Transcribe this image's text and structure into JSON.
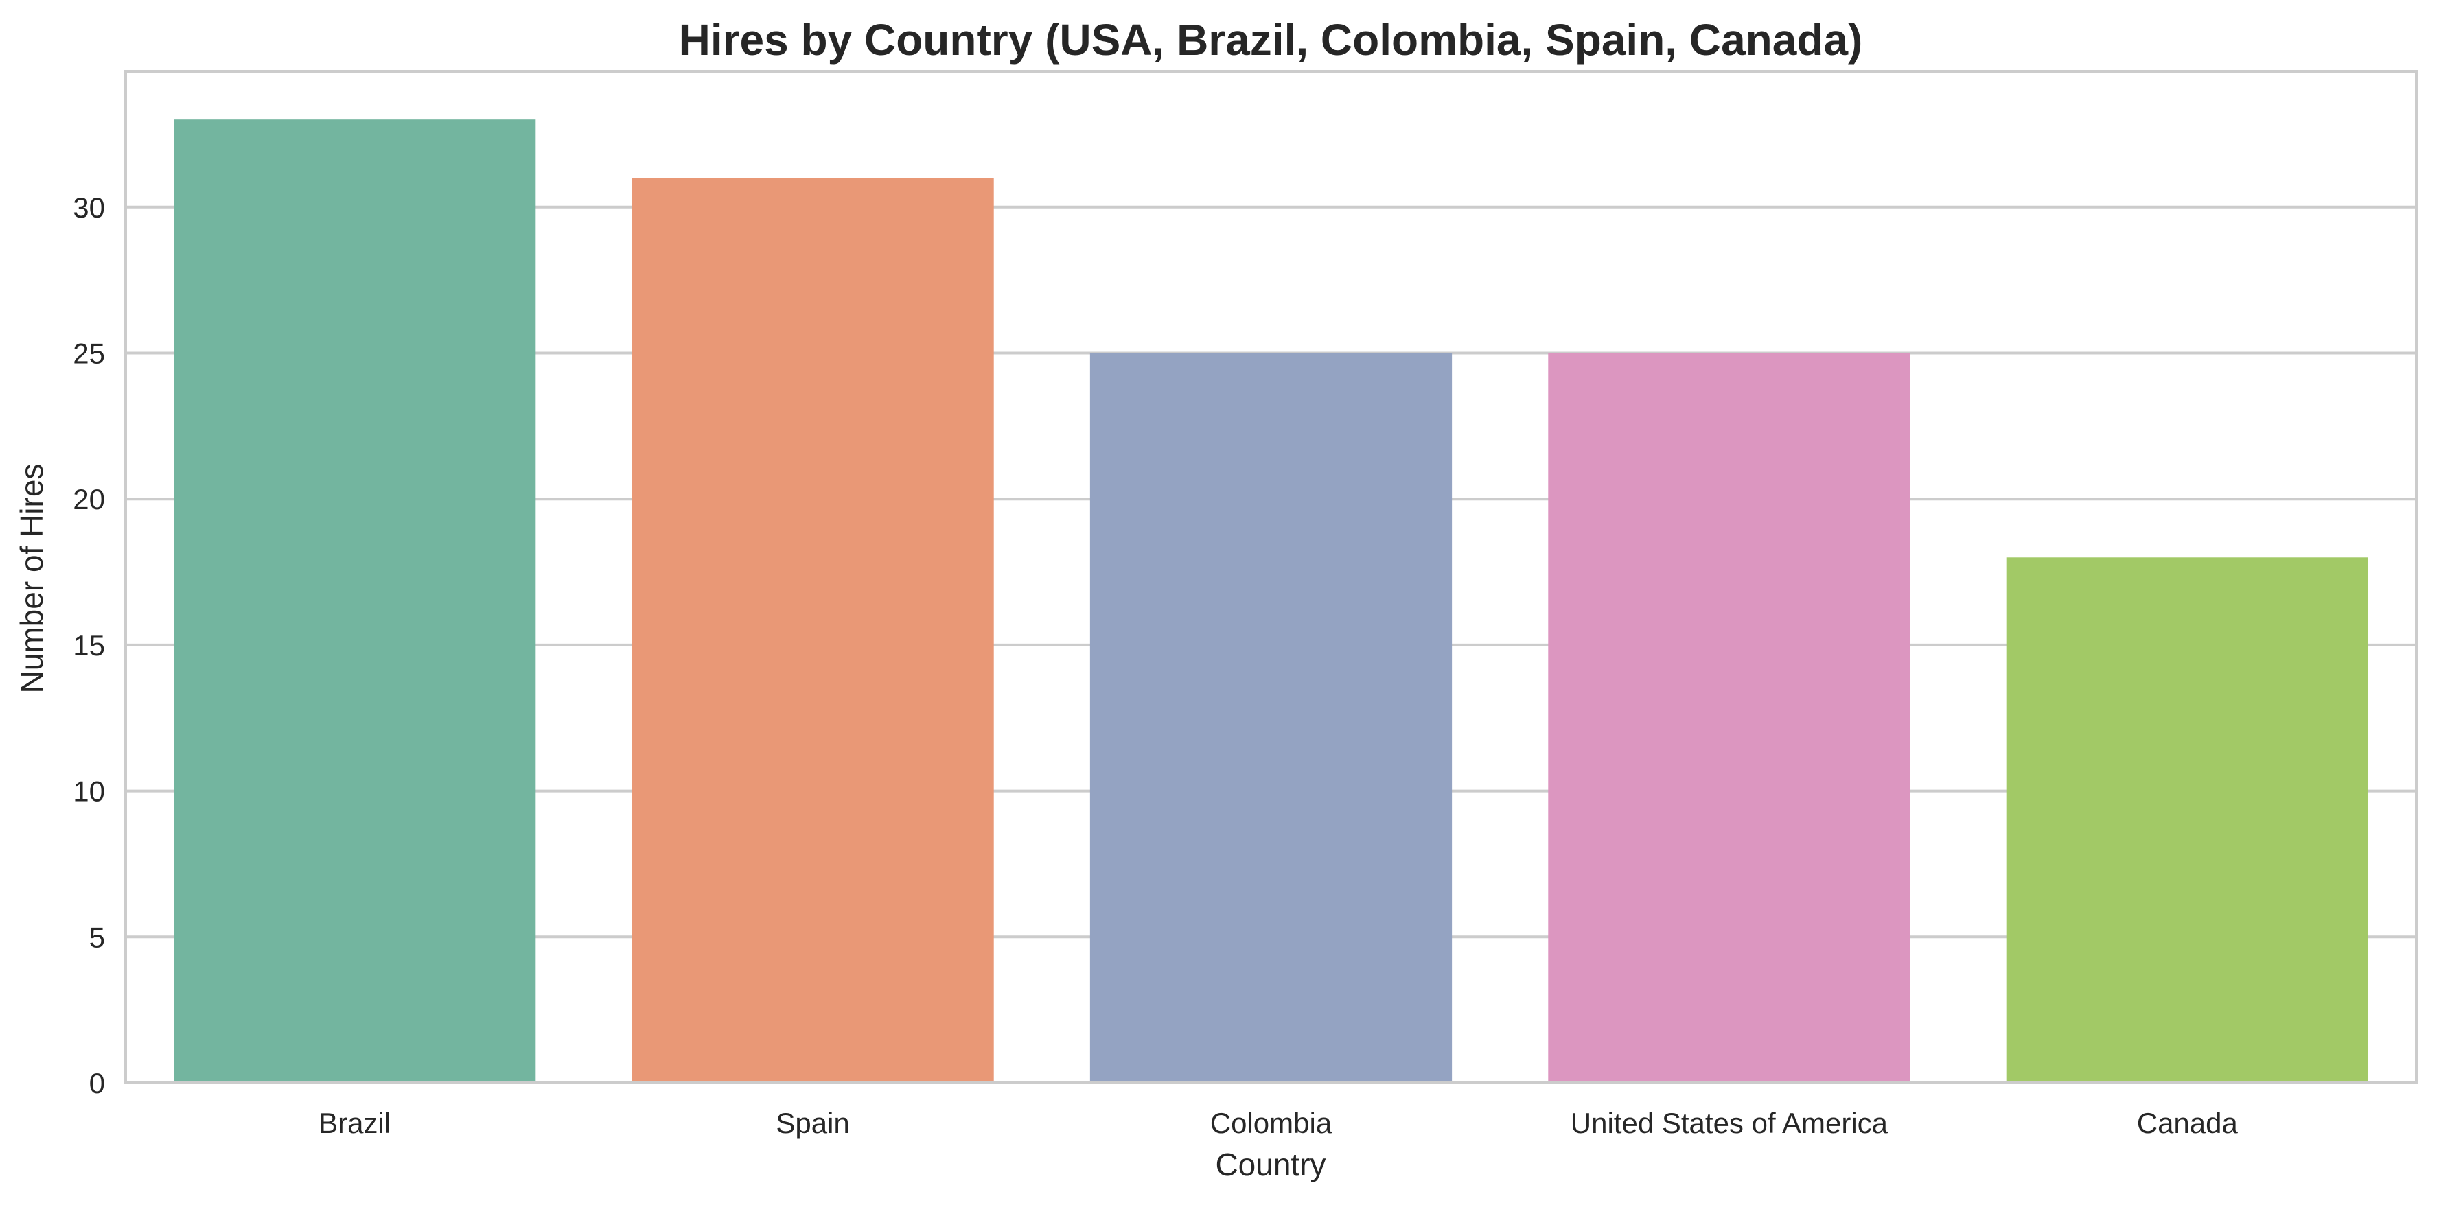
{
  "chart_data": {
    "type": "bar",
    "title": "Hires by Country (USA, Brazil, Colombia, Spain, Canada)",
    "xlabel": "Country",
    "ylabel": "Number of Hires",
    "categories": [
      "Brazil",
      "Spain",
      "Colombia",
      "United States of America",
      "Canada"
    ],
    "values": [
      33,
      31,
      25,
      25,
      18
    ],
    "colors": [
      "#73b59f",
      "#e99876",
      "#94a3c2",
      "#dc96c0",
      "#a2c966"
    ],
    "ylim": [
      0,
      34.65
    ],
    "yticks": [
      0,
      5,
      10,
      15,
      20,
      25,
      30
    ],
    "grid": true,
    "legend": "none"
  }
}
